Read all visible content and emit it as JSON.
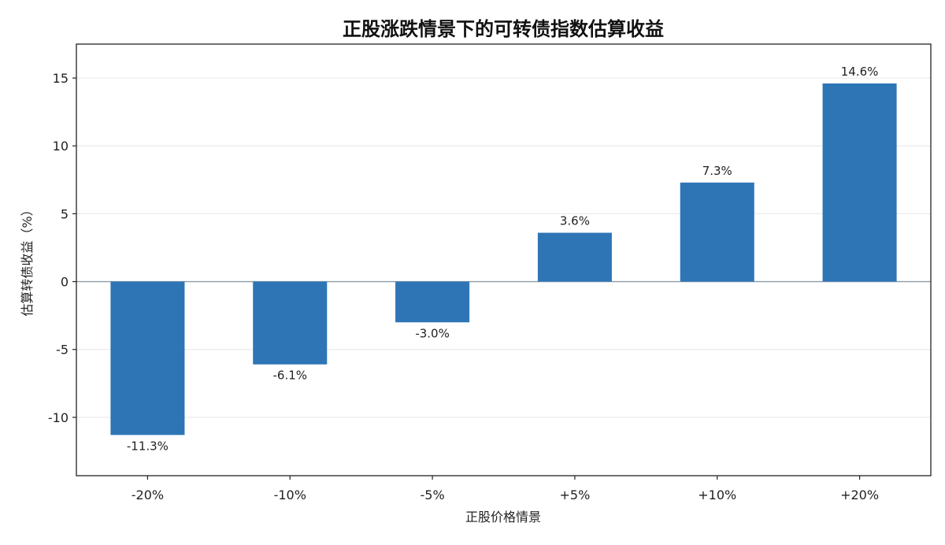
{
  "chart_data": {
    "type": "bar",
    "title": "正股涨跌情景下的可转债指数估算收益",
    "xlabel": "正股价格情景",
    "ylabel": "估算转债收益（%）",
    "categories": [
      "-20%",
      "-10%",
      "-5%",
      "+5%",
      "+10%",
      "+20%"
    ],
    "values": [
      -11.3,
      -6.1,
      -3.0,
      3.6,
      7.3,
      14.6
    ],
    "data_labels": [
      "-11.3%",
      "-6.1%",
      "-3.0%",
      "3.6%",
      "7.3%",
      "14.6%"
    ],
    "ylim": [
      -14.3,
      17.5
    ],
    "yticks": [
      -10,
      -5,
      0,
      5,
      10,
      15
    ],
    "ytick_labels": [
      "-10",
      "-5",
      "0",
      "5",
      "10",
      "15"
    ],
    "grid": "horizontal",
    "bar_color": "#2e75b6",
    "zero_line_color": "#8c9aa8"
  }
}
